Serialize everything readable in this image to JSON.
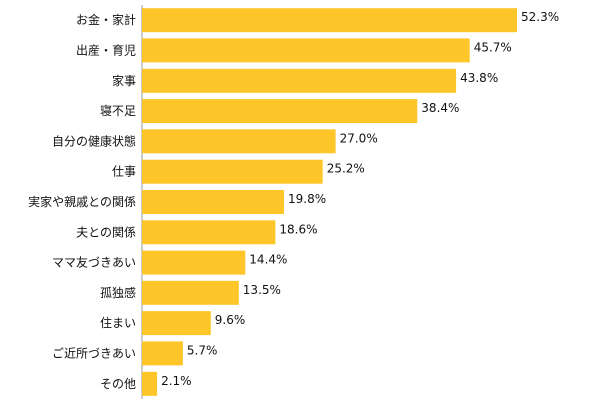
{
  "chart_data": {
    "type": "bar",
    "orientation": "horizontal",
    "categories": [
      "お金・家計",
      "出産・育児",
      "家事",
      "寝不足",
      "自分の健康状態",
      "仕事",
      "実家や親戚との関係",
      "夫との関係",
      "ママ友づきあい",
      "孤独感",
      "住まい",
      "ご近所づきあい",
      "その他"
    ],
    "values": [
      52.3,
      45.7,
      43.8,
      38.4,
      27.0,
      25.2,
      19.8,
      18.6,
      14.4,
      13.5,
      9.6,
      5.7,
      2.1
    ],
    "value_labels": [
      "52.3%",
      "45.7%",
      "43.8%",
      "38.4%",
      "27.0%",
      "25.2%",
      "19.8%",
      "18.6%",
      "14.4%",
      "13.5%",
      "9.6%",
      "5.7%",
      "2.1%"
    ],
    "unit": "%",
    "xlim": [
      0,
      52.3
    ],
    "grid": false,
    "legend": "none",
    "title": "",
    "xlabel": "",
    "ylabel": ""
  },
  "colors": {
    "bar": "#FFC629",
    "axis": "#999999",
    "text": "#111111"
  }
}
